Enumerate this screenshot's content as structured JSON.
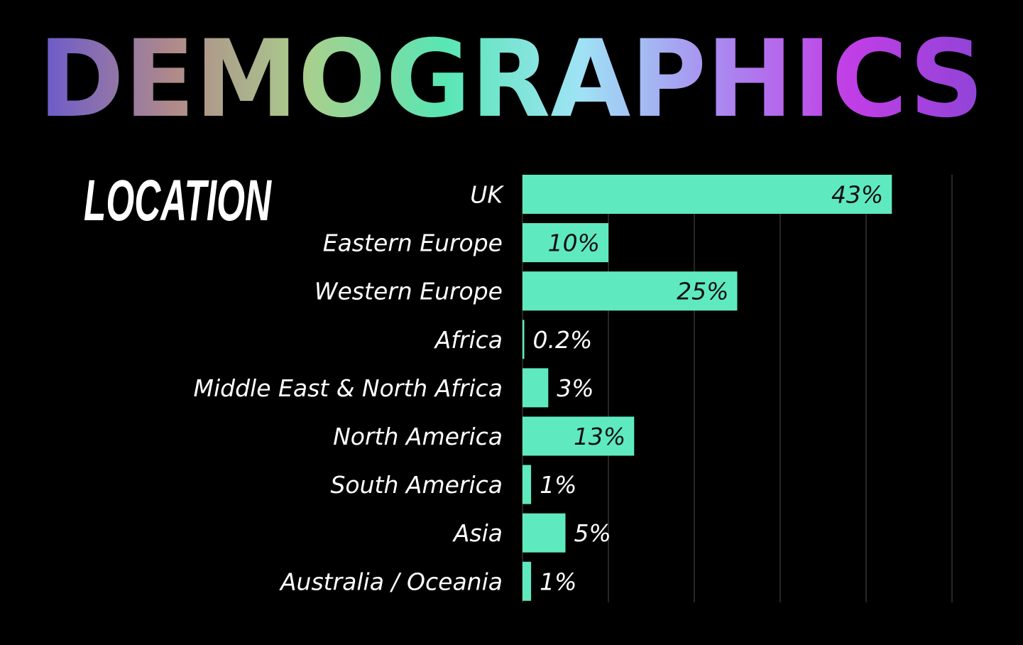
{
  "header": {
    "title": "DEMOGRAPHICS",
    "gradient": [
      "#6a5acd",
      "#b08a8a",
      "#a8d08d",
      "#58e6b4",
      "#9fe3f5",
      "#a98cf0",
      "#c13ee6",
      "#8e44d6"
    ]
  },
  "chart_data": {
    "type": "bar",
    "orientation": "horizontal",
    "title": "LOCATION",
    "categories": [
      "UK",
      "Eastern Europe",
      "Western Europe",
      "Africa",
      "Middle East & North Africa",
      "North America",
      "South America",
      "Asia",
      "Australia / Oceania"
    ],
    "values": [
      43,
      10,
      25,
      0.2,
      3,
      13,
      1,
      5,
      1
    ],
    "value_labels": [
      "43%",
      "10%",
      "25%",
      "0.2%",
      "3%",
      "13%",
      "1%",
      "5%",
      "1%"
    ],
    "xlim": [
      0,
      50
    ],
    "grid": true,
    "legend": "none",
    "colors": {
      "bar": "#5eeabe",
      "background": "#000000",
      "text": "#ffffff",
      "label_inside": "#111111",
      "grid": "#333333"
    }
  }
}
